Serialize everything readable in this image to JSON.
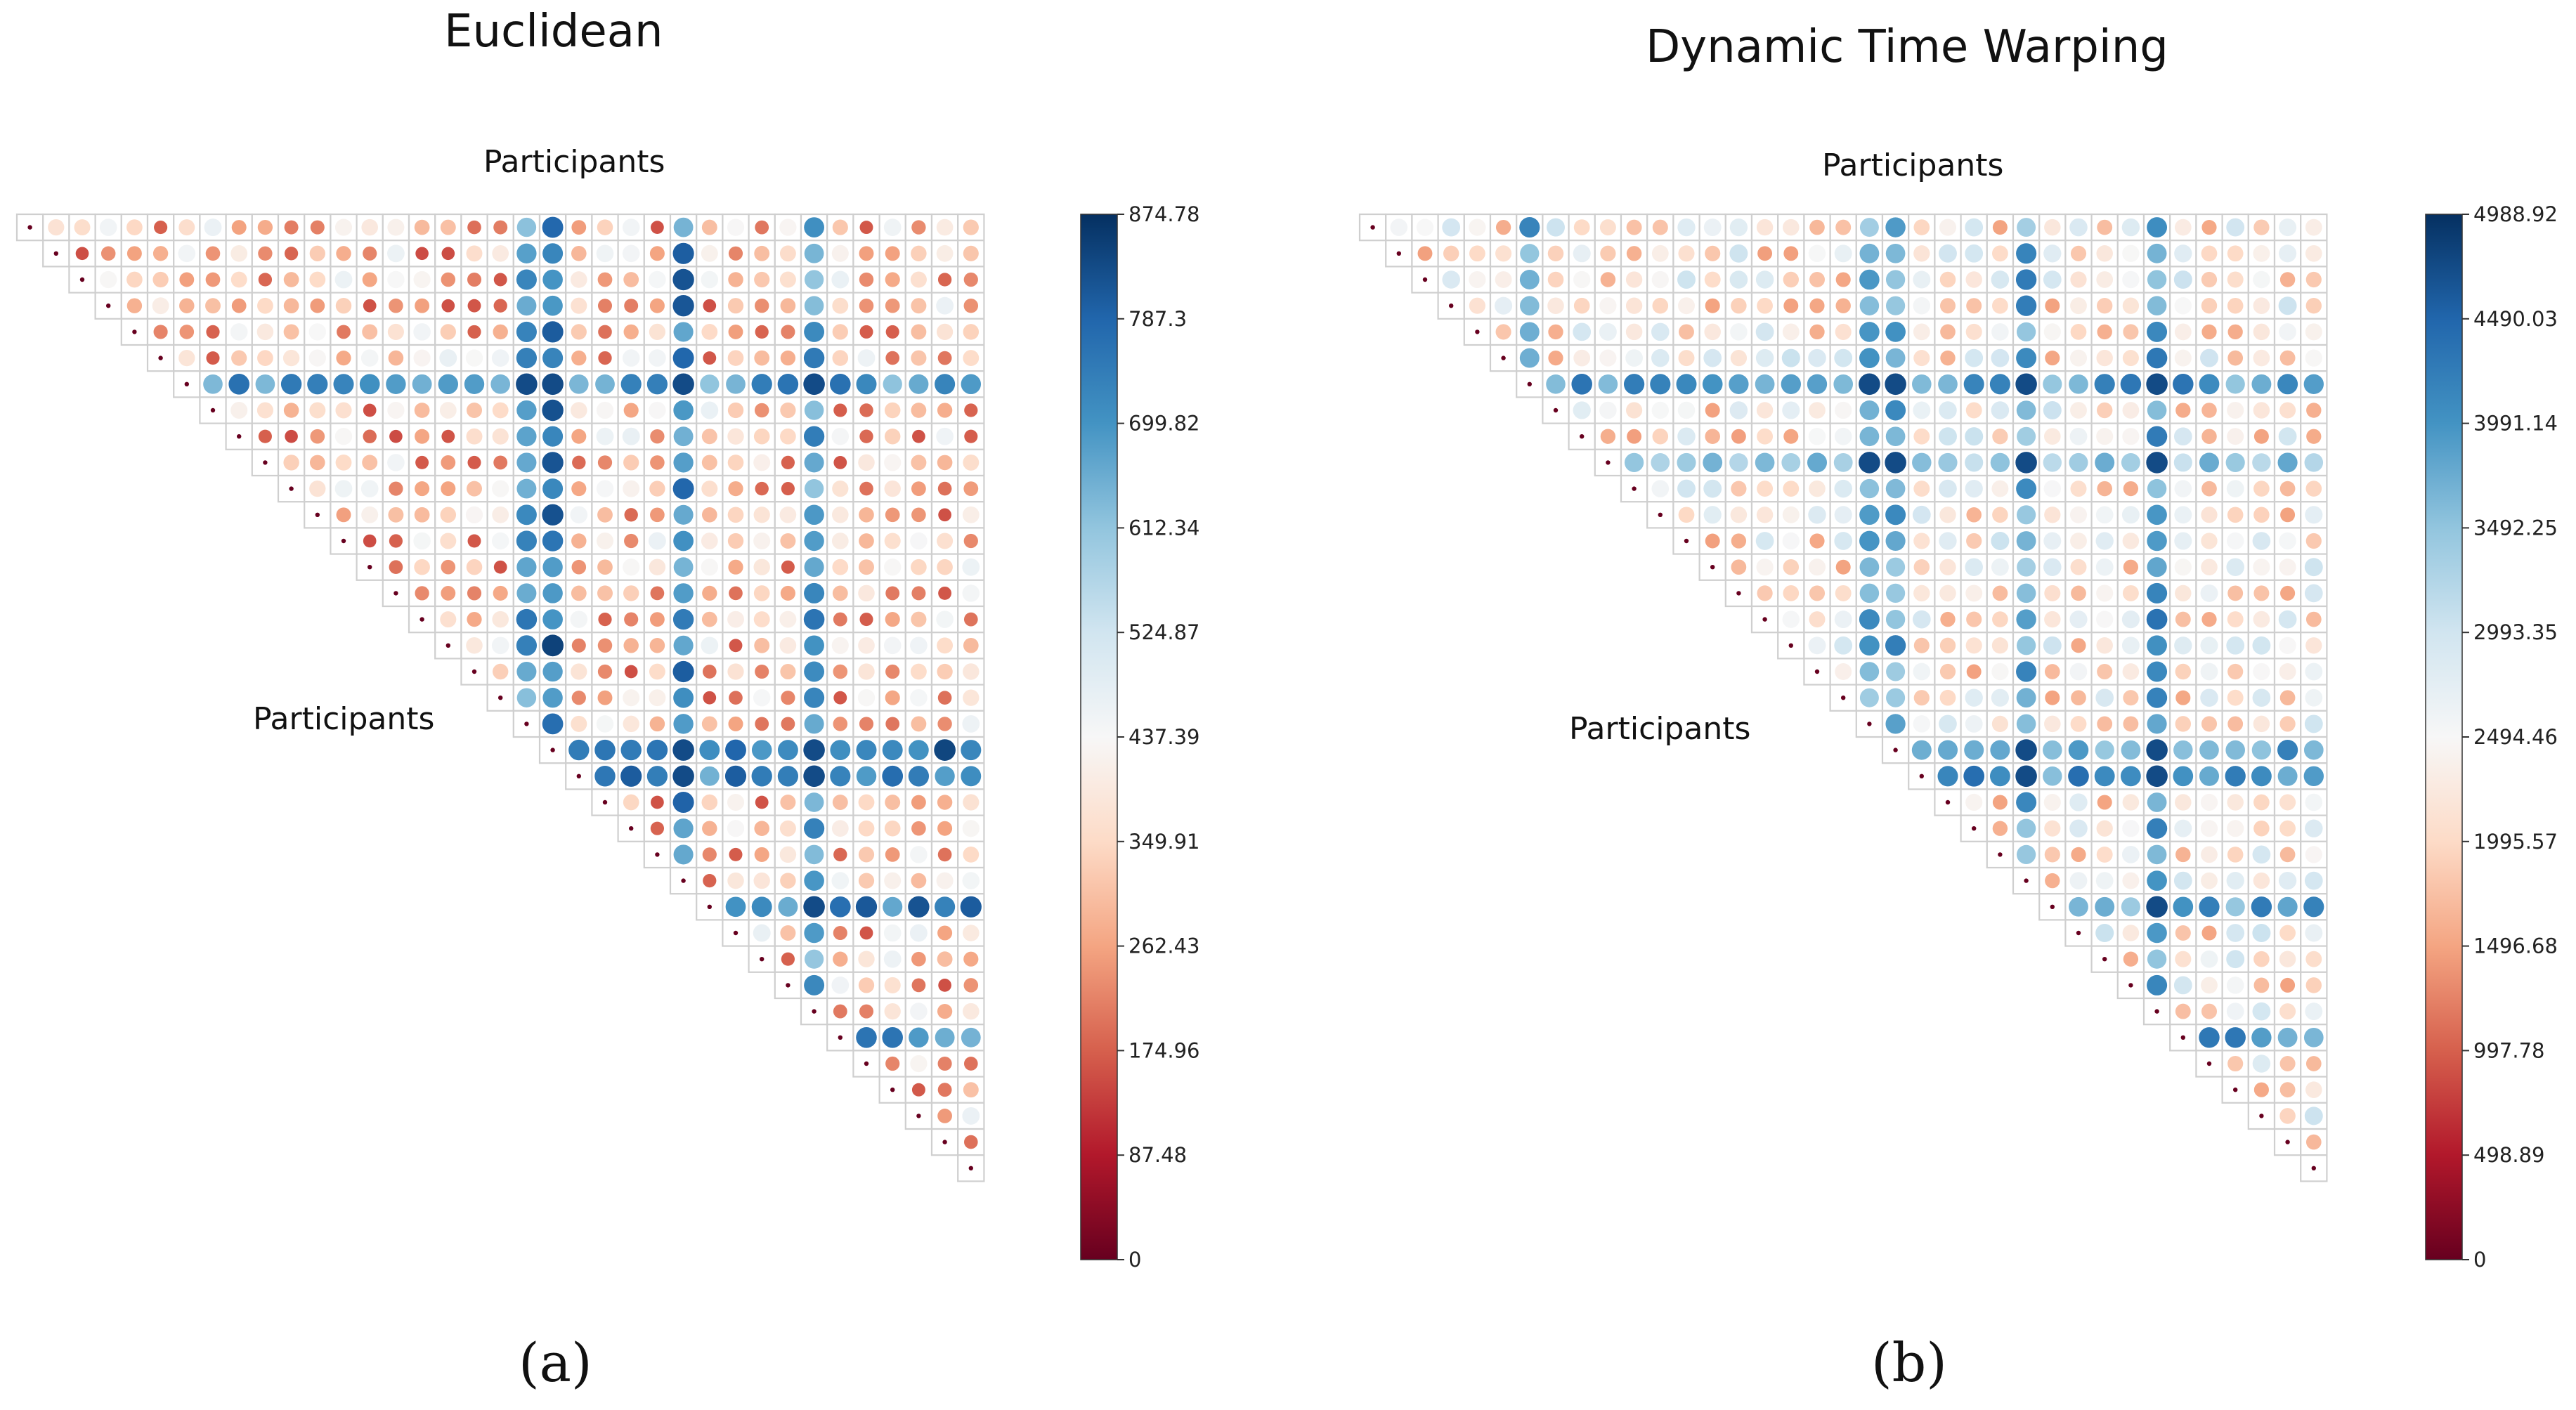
{
  "chart_data": [
    {
      "type": "heatmap",
      "subtype": "upper-triangular circle correlation matrix",
      "title": "Euclidean",
      "xlabel": "Participants",
      "ylabel": "Participants",
      "panel_label": "(a)",
      "n": 37,
      "colorbar": {
        "min": 0,
        "max": 874.78,
        "ticks": [
          "874.78",
          "787.3",
          "699.82",
          "612.34",
          "524.87",
          "437.39",
          "349.91",
          "262.43",
          "174.96",
          "87.48",
          "0"
        ]
      },
      "base_range": [
        150,
        470
      ],
      "high_rows": [
        {
          "index": 6,
          "value": 690
        },
        {
          "index": 20,
          "value": 700
        },
        {
          "index": 21,
          "value": 720
        },
        {
          "index": 26,
          "value": 740
        },
        {
          "index": 31,
          "value": 690
        }
      ],
      "high_cols": [
        {
          "index": 19,
          "value": 690
        },
        {
          "index": 20,
          "value": 760
        },
        {
          "index": 25,
          "value": 730
        },
        {
          "index": 30,
          "value": 680
        }
      ]
    },
    {
      "type": "heatmap",
      "subtype": "upper-triangular circle correlation matrix",
      "title": "Dynamic Time Warping",
      "xlabel": "Participants",
      "ylabel": "Participants",
      "panel_label": "(b)",
      "n": 37,
      "colorbar": {
        "min": 0,
        "max": 4988.92,
        "ticks": [
          "4988.92",
          "4490.03",
          "3991.14",
          "3492.25",
          "2993.35",
          "2494.46",
          "1995.57",
          "1496.68",
          "997.78",
          "498.89",
          "0"
        ]
      },
      "base_range": [
        1450,
        3050
      ],
      "high_rows": [
        {
          "index": 6,
          "value": 3900
        },
        {
          "index": 9,
          "value": 3400
        },
        {
          "index": 20,
          "value": 3800
        },
        {
          "index": 21,
          "value": 3950
        },
        {
          "index": 26,
          "value": 3850
        },
        {
          "index": 31,
          "value": 3900
        }
      ],
      "high_cols": [
        {
          "index": 6,
          "value": 3500
        },
        {
          "index": 19,
          "value": 3750
        },
        {
          "index": 20,
          "value": 3550
        },
        {
          "index": 25,
          "value": 3800
        },
        {
          "index": 30,
          "value": 3900
        }
      ]
    }
  ]
}
